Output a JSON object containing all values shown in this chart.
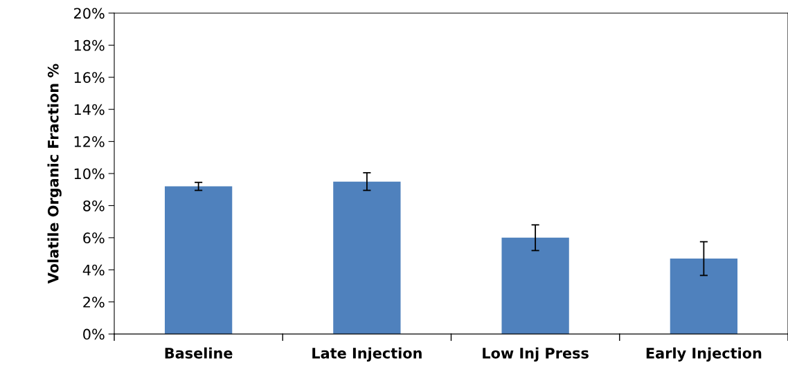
{
  "chart_data": {
    "type": "bar",
    "ylabel": "Volatile Organic Fraction %",
    "categories": [
      "Baseline",
      "Late Injection",
      "Low Inj Press",
      "Early Injection"
    ],
    "values": [
      9.2,
      9.5,
      6.0,
      4.7
    ],
    "errors": [
      0.25,
      0.55,
      0.8,
      1.05
    ],
    "color": "#4f81bd",
    "ylim": [
      0,
      20
    ],
    "yticks": [
      {
        "value": 0,
        "label": "0%"
      },
      {
        "value": 2,
        "label": "2%"
      },
      {
        "value": 4,
        "label": "4%"
      },
      {
        "value": 6,
        "label": "6%"
      },
      {
        "value": 8,
        "label": "8%"
      },
      {
        "value": 10,
        "label": "10%"
      },
      {
        "value": 12,
        "label": "12%"
      },
      {
        "value": 14,
        "label": "14%"
      },
      {
        "value": 16,
        "label": "16%"
      },
      {
        "value": 18,
        "label": "18%"
      },
      {
        "value": 20,
        "label": "20%"
      }
    ],
    "grid": false
  }
}
